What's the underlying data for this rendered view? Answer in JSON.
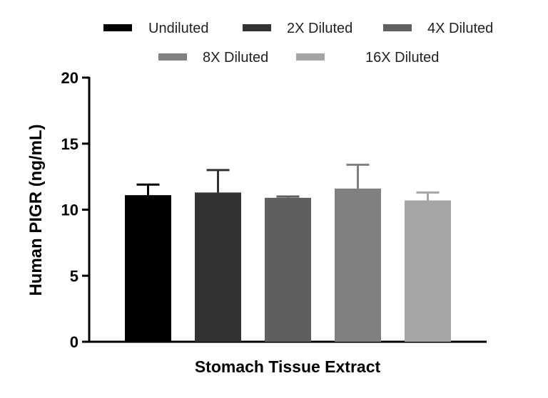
{
  "chart_data": {
    "type": "bar",
    "xlabel": "Stomach Tissue Extract",
    "ylabel": "Human PIGR (ng/mL)",
    "ylim": [
      0,
      20
    ],
    "yticks": [
      0,
      5,
      10,
      15,
      20
    ],
    "grid": false,
    "legend_position": "top",
    "series": [
      {
        "name": "Undiluted",
        "value": 11.1,
        "error": 0.8,
        "color": "#000000"
      },
      {
        "name": "2X Diluted",
        "value": 11.3,
        "error": 1.7,
        "color": "#333333"
      },
      {
        "name": "4X Diluted",
        "value": 10.9,
        "error": 0.1,
        "color": "#5f5f5f"
      },
      {
        "name": "8X Diluted",
        "value": 11.6,
        "error": 1.8,
        "color": "#808080"
      },
      {
        "name": "16X Diluted",
        "value": 10.7,
        "error": 0.6,
        "color": "#a5a5a5"
      }
    ]
  }
}
